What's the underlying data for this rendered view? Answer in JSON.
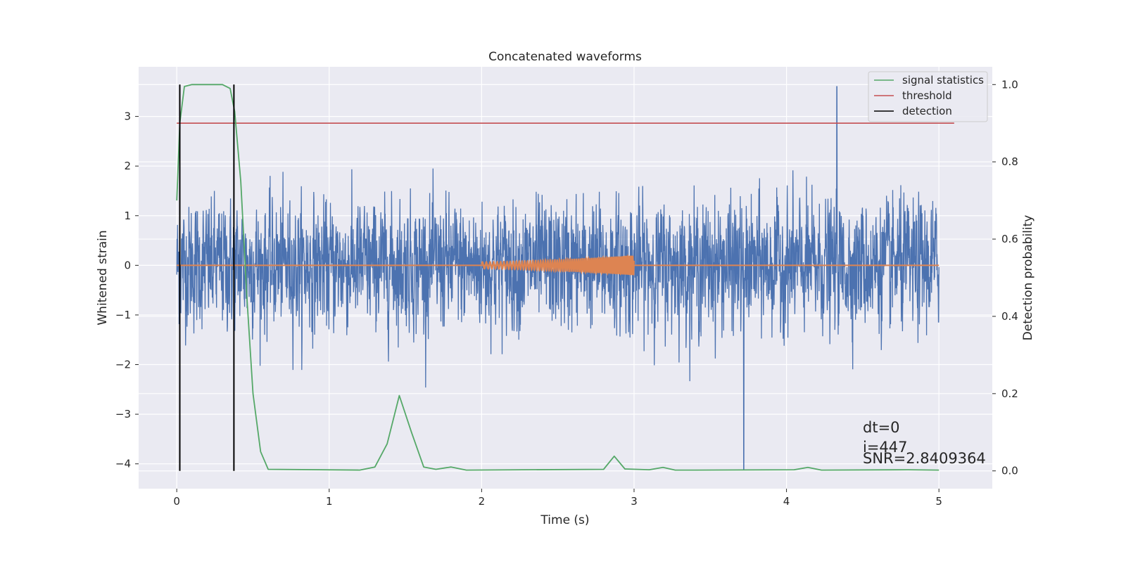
{
  "chart_data": {
    "type": "line",
    "title": "Concatenated waveforms",
    "xlabel": "Time (s)",
    "ylabel_left": "Whitened strain",
    "ylabel_right": "Detection probability",
    "xlim": [
      -0.25,
      5.35
    ],
    "ylim_left": [
      -4.5,
      4.0
    ],
    "ylim_right": [
      -0.046,
      1.046
    ],
    "x_ticks": [
      0,
      1,
      2,
      3,
      4,
      5
    ],
    "y_ticks_left": [
      3,
      2,
      1,
      0,
      -1,
      -2,
      -3,
      -4
    ],
    "y_ticks_right": [
      1.0,
      0.8,
      0.6,
      0.4,
      0.2,
      0.0
    ],
    "grid": true,
    "legend_position": "top-right",
    "legend": [
      {
        "label": "signal statistics",
        "color": "#55a868"
      },
      {
        "label": "threshold",
        "color": "#c44e52"
      },
      {
        "label": "detection",
        "color": "#000000"
      }
    ],
    "colors": {
      "strain": "#4c72b0",
      "template": "#dd8452",
      "signal_statistics": "#55a868",
      "threshold": "#c44e52",
      "detection": "#000000",
      "background": "#eaeaf2"
    },
    "strain_noise": {
      "x_range": [
        0,
        5
      ],
      "typical_amplitude": 1.1,
      "max_peak_x": 4.33,
      "max_peak_y": 3.6,
      "min_peak_x": 3.72,
      "min_peak_y": -4.1
    },
    "template_chirp": {
      "x_range": [
        2.0,
        3.0
      ],
      "amplitude_start": 0.07,
      "amplitude_end": 0.2,
      "baseline_x_range": [
        0,
        5
      ]
    },
    "signal_statistics": {
      "x": [
        0.0,
        0.02,
        0.05,
        0.1,
        0.3,
        0.35,
        0.38,
        0.42,
        0.46,
        0.5,
        0.55,
        0.6,
        1.2,
        1.3,
        1.38,
        1.46,
        1.54,
        1.62,
        1.7,
        1.8,
        1.9,
        2.8,
        2.87,
        2.94,
        3.1,
        3.19,
        3.27,
        3.4,
        4.05,
        4.14,
        4.23,
        4.8,
        5.0
      ],
      "y": [
        0.7,
        0.9,
        0.995,
        1.0,
        1.0,
        0.99,
        0.93,
        0.75,
        0.45,
        0.2,
        0.05,
        0.004,
        0.002,
        0.01,
        0.07,
        0.195,
        0.1,
        0.01,
        0.004,
        0.01,
        0.002,
        0.004,
        0.038,
        0.005,
        0.003,
        0.009,
        0.002,
        0.002,
        0.003,
        0.009,
        0.002,
        0.003,
        0.002
      ]
    },
    "threshold": {
      "x": [
        0,
        5.1
      ],
      "y": 0.9
    },
    "detections": [
      0.02,
      0.375
    ],
    "annotations": {
      "dt": "dt=0",
      "i": "i=447",
      "snr": "SNR=2.8409364"
    }
  }
}
